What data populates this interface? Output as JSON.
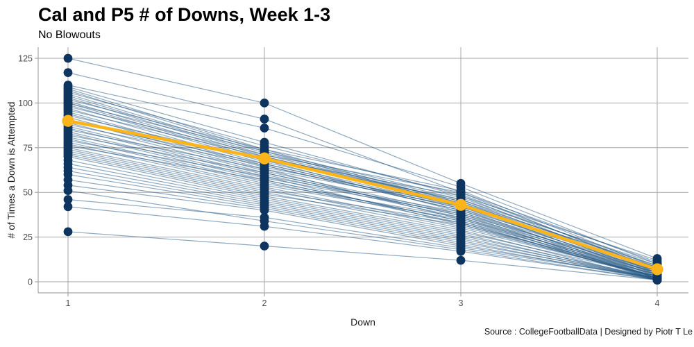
{
  "title": "Cal and P5 # of Downs, Week 1-3",
  "subtitle": "No Blowouts",
  "caption": "Source : CollegeFootballData | Designed by Piotr T Le",
  "chart_data": {
    "type": "line",
    "title": "Cal and P5 # of Downs, Week 1-3",
    "subtitle": "No Blowouts",
    "xlabel": "Down",
    "ylabel": "# of Times a Down is Attempted",
    "x": [
      1,
      2,
      3,
      4
    ],
    "xticks": [
      1,
      2,
      3,
      4
    ],
    "yticks": [
      0,
      25,
      50,
      75,
      100,
      125
    ],
    "ylim": [
      0,
      125
    ],
    "grid": true,
    "legend": "none",
    "colors": {
      "background": "#ffffff",
      "grid": "#a6a6a6",
      "axis": "#a6a6a6",
      "point": "#0e3560",
      "line": "#1f5380",
      "highlight": "#fbb41a",
      "tick_label": "#4d4d4d",
      "text": "#1a1a1a"
    },
    "highlight_series": {
      "name": "Cal",
      "values": [
        90,
        69,
        43,
        7
      ]
    },
    "series": [
      [
        125,
        100,
        55,
        13
      ],
      [
        117,
        91,
        50,
        11
      ],
      [
        110,
        86,
        53,
        10
      ],
      [
        109,
        78,
        48,
        12
      ],
      [
        108,
        74,
        51,
        8
      ],
      [
        107,
        73,
        47,
        9
      ],
      [
        106,
        76,
        49,
        7
      ],
      [
        105,
        72,
        46,
        10
      ],
      [
        104,
        71,
        50,
        6
      ],
      [
        103,
        70,
        45,
        8
      ],
      [
        102,
        74,
        44,
        9
      ],
      [
        101,
        69,
        48,
        5
      ],
      [
        100,
        73,
        43,
        7
      ],
      [
        100,
        68,
        46,
        6
      ],
      [
        99,
        67,
        42,
        8
      ],
      [
        98,
        71,
        45,
        4
      ],
      [
        97,
        66,
        41,
        7
      ],
      [
        96,
        70,
        44,
        5
      ],
      [
        95,
        65,
        40,
        6
      ],
      [
        94,
        64,
        43,
        3
      ],
      [
        93,
        68,
        39,
        5
      ],
      [
        92,
        63,
        42,
        4
      ],
      [
        91,
        62,
        38,
        6
      ],
      [
        90,
        66,
        41,
        2
      ],
      [
        89,
        61,
        37,
        5
      ],
      [
        88,
        65,
        40,
        3
      ],
      [
        87,
        60,
        36,
        4
      ],
      [
        86,
        59,
        39,
        2
      ],
      [
        85,
        63,
        35,
        5
      ],
      [
        84,
        58,
        38,
        1
      ],
      [
        83,
        57,
        34,
        4
      ],
      [
        82,
        61,
        37,
        2
      ],
      [
        81,
        56,
        33,
        3
      ],
      [
        80,
        55,
        36,
        1
      ],
      [
        79,
        59,
        32,
        4
      ],
      [
        78,
        54,
        35,
        2
      ],
      [
        77,
        53,
        31,
        3
      ],
      [
        76,
        57,
        34,
        1
      ],
      [
        75,
        52,
        30,
        3
      ],
      [
        74,
        51,
        33,
        2
      ],
      [
        73,
        50,
        29,
        1
      ],
      [
        72,
        49,
        32,
        2
      ],
      [
        71,
        48,
        28,
        3
      ],
      [
        70,
        47,
        27,
        1
      ],
      [
        68,
        46,
        26,
        2
      ],
      [
        66,
        45,
        25,
        1
      ],
      [
        64,
        44,
        24,
        2
      ],
      [
        62,
        43,
        23,
        1
      ],
      [
        60,
        42,
        22,
        2
      ],
      [
        57,
        41,
        21,
        1
      ],
      [
        54,
        40,
        20,
        2
      ],
      [
        51,
        34,
        18,
        1
      ],
      [
        46,
        36,
        19,
        2
      ],
      [
        42,
        31,
        17,
        1
      ],
      [
        28,
        20,
        12,
        1
      ]
    ]
  }
}
